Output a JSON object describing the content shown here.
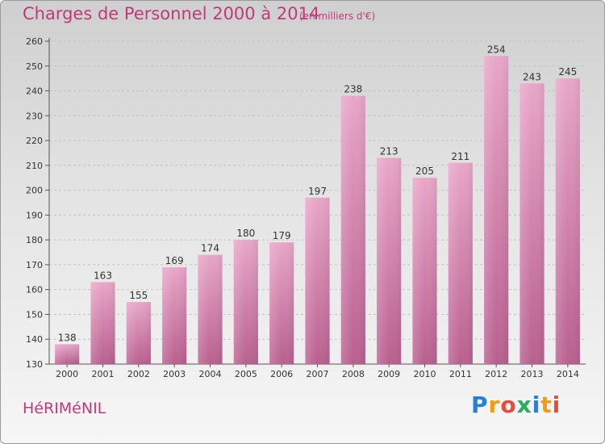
{
  "header": {
    "title": "Charges de Personnel 2000 à 2014",
    "subtitle": "(en milliers d'€)"
  },
  "footer": {
    "commune": "HéRIMéNIL",
    "logo_text": "Proxiti",
    "logo_letters": [
      {
        "ch": "P",
        "color": "#2a7fd4"
      },
      {
        "ch": "r",
        "color": "#f39c12"
      },
      {
        "ch": "o",
        "color": "#e74c3c"
      },
      {
        "ch": "x",
        "color": "#27ae60"
      },
      {
        "ch": "i",
        "color": "#2a7fd4"
      },
      {
        "ch": "t",
        "color": "#f39c12"
      },
      {
        "ch": "i",
        "color": "#e74c3c"
      }
    ]
  },
  "chart_data": {
    "type": "bar",
    "title": "Charges de Personnel 2000 à 2014",
    "subtitle": "(en milliers d'€)",
    "categories": [
      "2000",
      "2001",
      "2002",
      "2003",
      "2004",
      "2005",
      "2006",
      "2007",
      "2008",
      "2009",
      "2010",
      "2011",
      "2012",
      "2013",
      "2014"
    ],
    "values": [
      138,
      163,
      155,
      169,
      174,
      180,
      179,
      197,
      238,
      213,
      205,
      211,
      254,
      243,
      245
    ],
    "ylim": [
      130,
      260
    ],
    "yticks": [
      130,
      140,
      150,
      160,
      170,
      180,
      190,
      200,
      210,
      220,
      230,
      240,
      250,
      260
    ],
    "grid": true,
    "bar_color": "#d0689e",
    "data_labels": true
  }
}
